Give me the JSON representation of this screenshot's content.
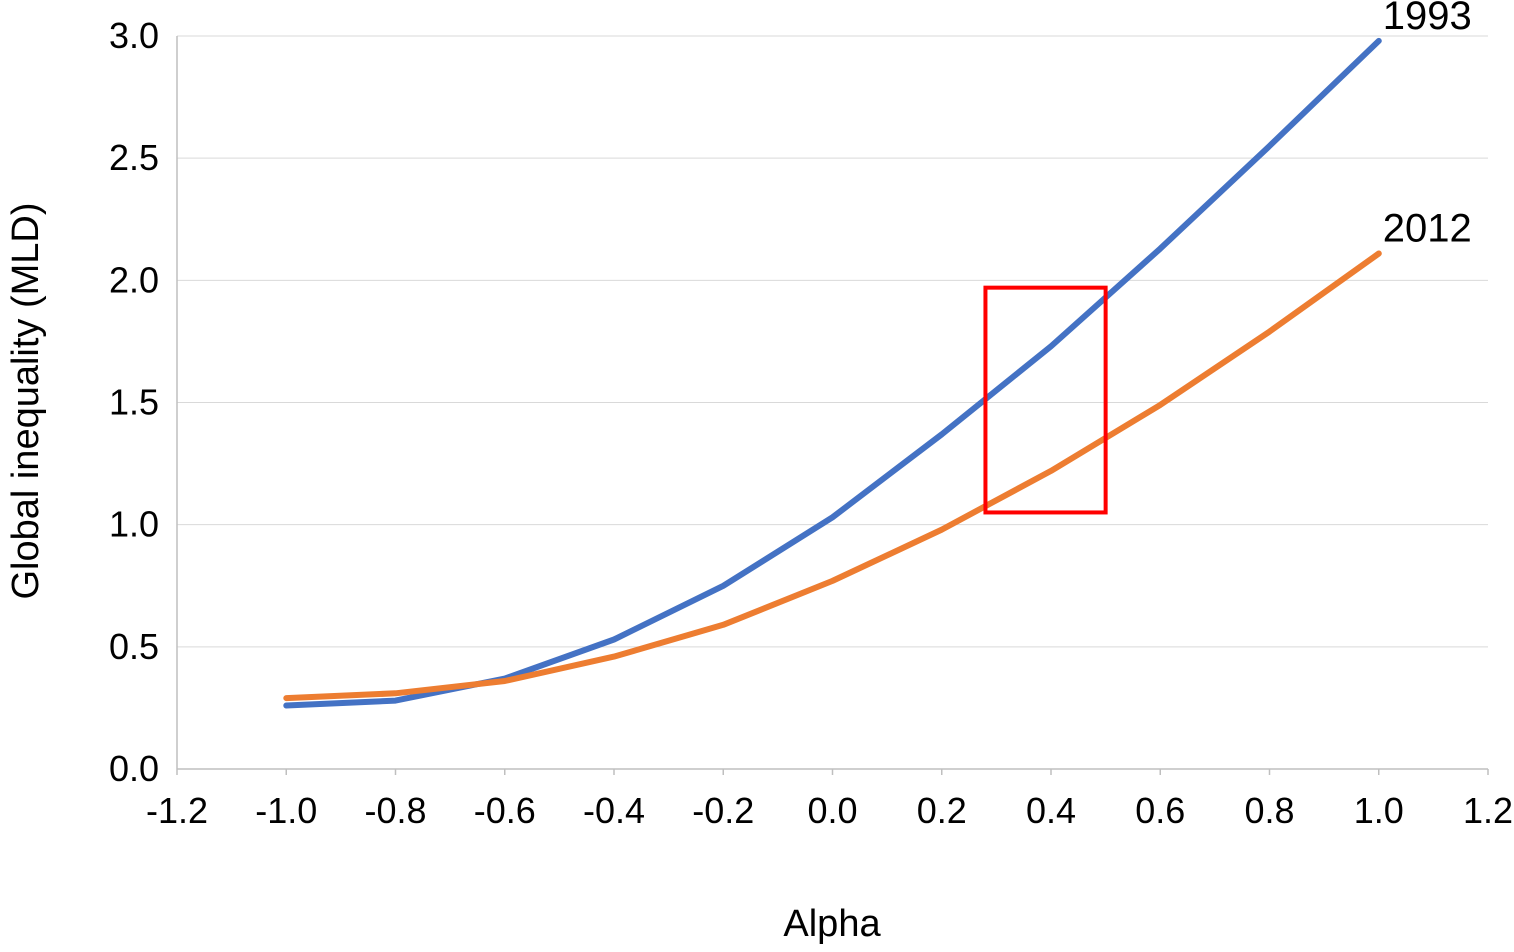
{
  "chart_data": {
    "type": "line",
    "title": "",
    "xlabel": "Alpha",
    "ylabel": "Global inequality (MLD)",
    "xlim": [
      -1.2,
      1.2
    ],
    "ylim": [
      0.0,
      3.0
    ],
    "x_ticks": [
      -1.2,
      -1.0,
      -0.8,
      -0.6,
      -0.4,
      -0.2,
      0.0,
      0.2,
      0.4,
      0.6,
      0.8,
      1.0,
      1.2
    ],
    "x_tick_labels": [
      "-1.2",
      "-1.0",
      "-0.8",
      "-0.6",
      "-0.4",
      "-0.2",
      "0.0",
      "0.2",
      "0.4",
      "0.6",
      "0.8",
      "1.0",
      "1.2"
    ],
    "y_ticks": [
      0.0,
      0.5,
      1.0,
      1.5,
      2.0,
      2.5,
      3.0
    ],
    "y_tick_labels": [
      "0.0",
      "0.5",
      "1.0",
      "1.5",
      "2.0",
      "2.5",
      "3.0"
    ],
    "grid": "horizontal",
    "legend": "none (series labeled at line ends)",
    "x": [
      -1.0,
      -0.8,
      -0.6,
      -0.4,
      -0.2,
      0.0,
      0.2,
      0.4,
      0.6,
      0.8,
      1.0
    ],
    "series": [
      {
        "name": "1993",
        "color": "#4472c4",
        "values": [
          0.26,
          0.28,
          0.37,
          0.53,
          0.75,
          1.03,
          1.37,
          1.73,
          2.13,
          2.55,
          2.98
        ]
      },
      {
        "name": "2012",
        "color": "#ed7d31",
        "values": [
          0.29,
          0.31,
          0.36,
          0.46,
          0.59,
          0.77,
          0.98,
          1.22,
          1.49,
          1.79,
          2.11
        ]
      }
    ],
    "annotation": {
      "type": "highlight-rectangle",
      "color": "#ff0000",
      "x_range": [
        0.28,
        0.5
      ],
      "y_range": [
        1.05,
        1.97
      ]
    }
  }
}
